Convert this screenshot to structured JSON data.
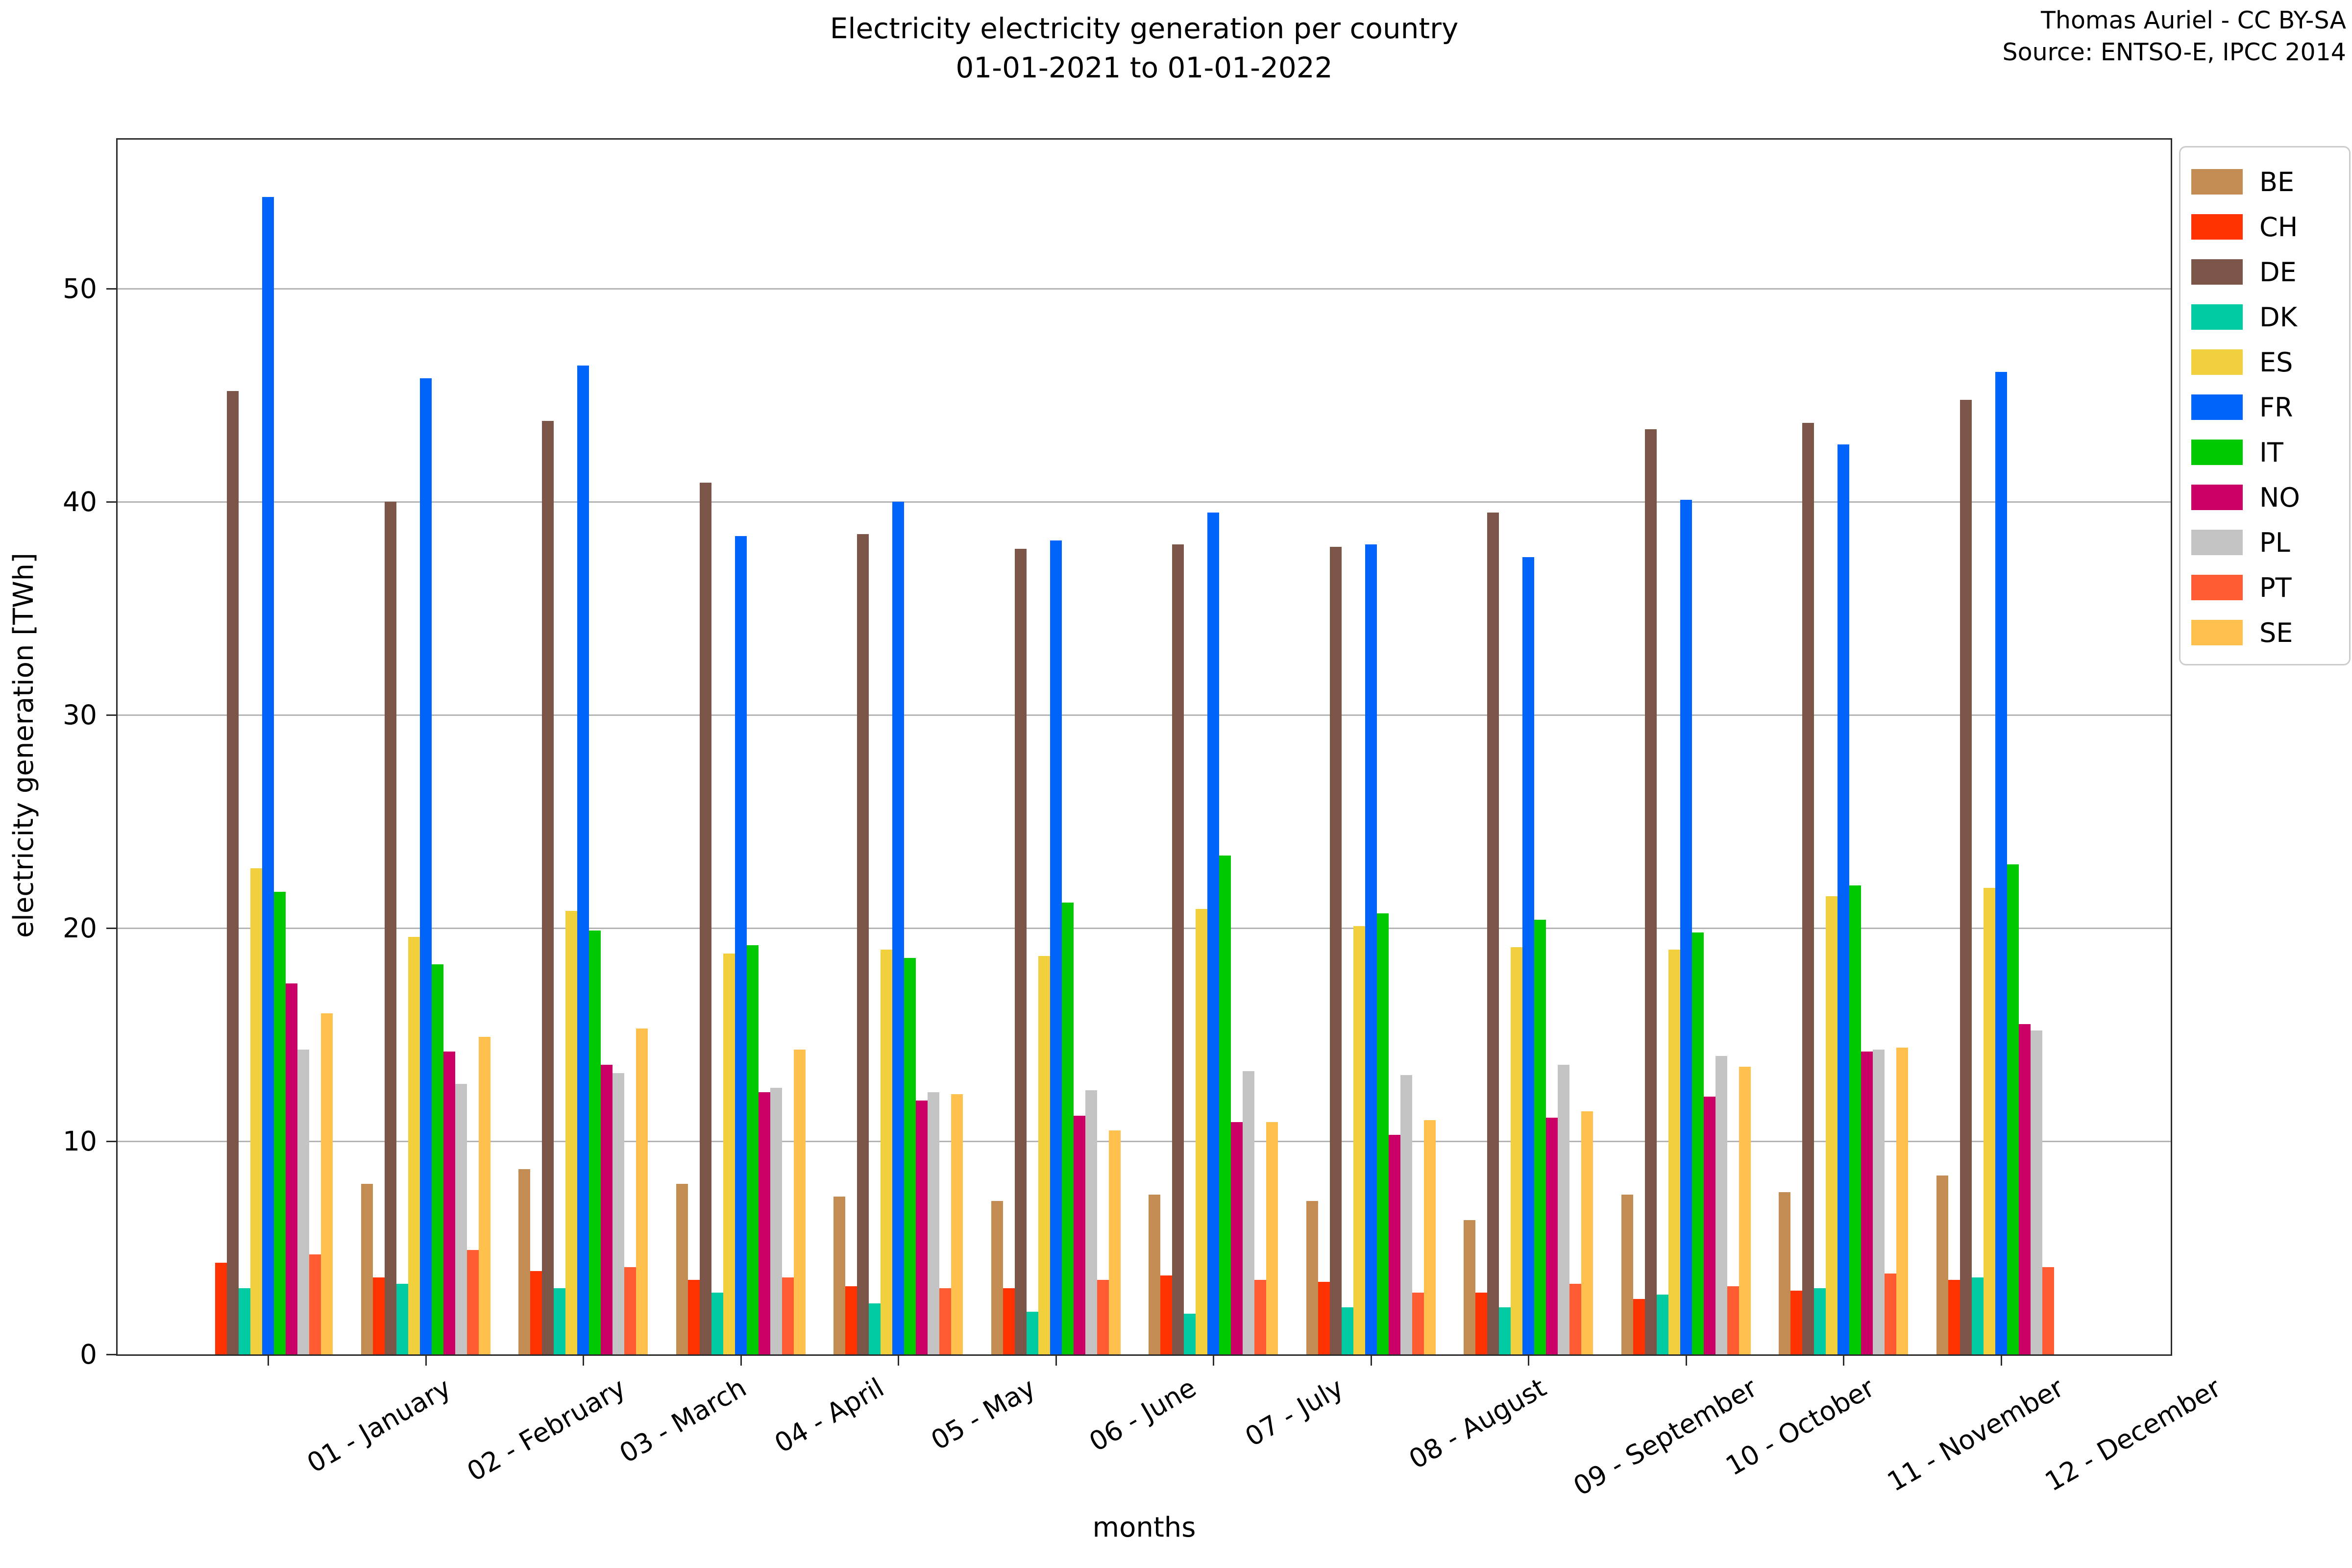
{
  "title": {
    "line1": "Electricity electricity generation per country",
    "line2": "01-01-2021 to 01-01-2022"
  },
  "attribution": {
    "line1": "Thomas Auriel - CC BY-SA",
    "line2": "Source: ENTSO-E, IPCC 2014"
  },
  "chart_data": {
    "type": "bar",
    "title": "Electricity electricity generation per country 01-01-2021 to 01-01-2022",
    "xlabel": "months",
    "ylabel": "electricity generation [TWh]",
    "ylim": [
      0,
      57
    ],
    "yticks": [
      0,
      10,
      20,
      30,
      40,
      50
    ],
    "grid": "horizontal",
    "legend_position": "top-right",
    "categories": [
      "01 - January",
      "02 - February",
      "03 - March",
      "04 - April",
      "05 - May",
      "06 - June",
      "07 - July",
      "08 - August",
      "09 - September",
      "10 - October",
      "11 - November",
      "12 - December"
    ],
    "series": [
      {
        "name": "BE",
        "color": "#C28C53",
        "values": [
          null,
          8.0,
          8.7,
          8.0,
          7.4,
          7.2,
          7.5,
          7.2,
          6.3,
          7.5,
          7.6,
          8.4
        ]
      },
      {
        "name": "CH",
        "color": "#FF3301",
        "values": [
          4.3,
          3.6,
          3.9,
          3.5,
          3.2,
          3.1,
          3.7,
          3.4,
          2.9,
          2.6,
          3.0,
          3.5
        ]
      },
      {
        "name": "DE",
        "color": "#7A5548",
        "values": [
          45.2,
          40.0,
          43.8,
          40.9,
          38.5,
          37.8,
          38.0,
          37.9,
          39.5,
          43.4,
          43.7,
          44.8
        ]
      },
      {
        "name": "DK",
        "color": "#00CBA2",
        "values": [
          3.1,
          3.3,
          3.1,
          2.9,
          2.4,
          2.0,
          1.9,
          2.2,
          2.2,
          2.8,
          3.1,
          3.6
        ]
      },
      {
        "name": "ES",
        "color": "#F2CF3D",
        "values": [
          22.8,
          19.6,
          20.8,
          18.8,
          19.0,
          18.7,
          20.9,
          20.1,
          19.1,
          19.0,
          21.5,
          21.9
        ]
      },
      {
        "name": "FR",
        "color": "#0064FA",
        "values": [
          54.3,
          45.8,
          46.4,
          38.4,
          40.0,
          38.2,
          39.5,
          38.0,
          37.4,
          40.1,
          42.7,
          46.1
        ]
      },
      {
        "name": "IT",
        "color": "#00C801",
        "values": [
          21.7,
          18.3,
          19.9,
          19.2,
          18.6,
          21.2,
          23.4,
          20.7,
          20.4,
          19.8,
          22.0,
          23.0
        ]
      },
      {
        "name": "NO",
        "color": "#CB0066",
        "values": [
          17.4,
          14.2,
          13.6,
          12.3,
          11.9,
          11.2,
          10.9,
          10.3,
          11.1,
          12.1,
          14.2,
          15.5
        ]
      },
      {
        "name": "PL",
        "color": "#C4C4C4",
        "values": [
          14.3,
          12.7,
          13.2,
          12.5,
          12.3,
          12.4,
          13.3,
          13.1,
          13.6,
          14.0,
          14.3,
          15.2
        ]
      },
      {
        "name": "PT",
        "color": "#FF5B33",
        "values": [
          4.7,
          4.9,
          4.1,
          3.6,
          3.1,
          3.5,
          3.5,
          2.9,
          3.3,
          3.2,
          3.8,
          4.1
        ]
      },
      {
        "name": "SE",
        "color": "#FFC04D",
        "values": [
          16.0,
          14.9,
          15.3,
          14.3,
          12.2,
          10.5,
          10.9,
          11.0,
          11.4,
          13.5,
          14.4,
          null
        ]
      }
    ]
  }
}
